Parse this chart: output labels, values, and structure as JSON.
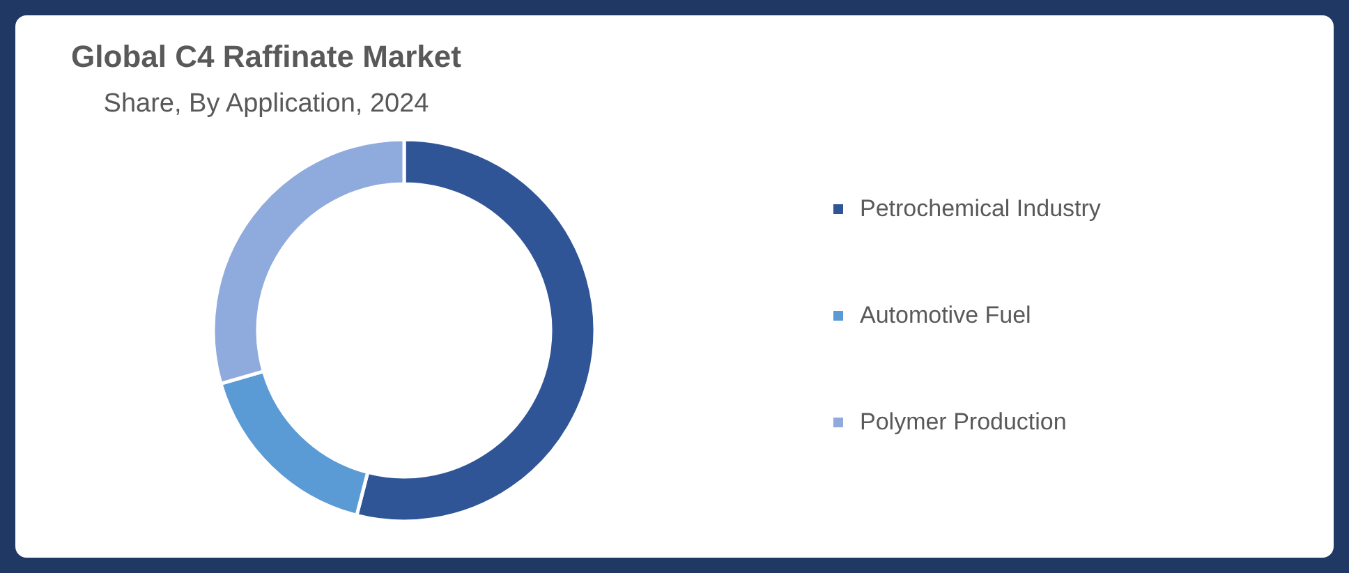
{
  "chart_data": {
    "type": "donut",
    "title": "Global C4 Raffinate Market",
    "subtitle": "Share, By Application, 2024",
    "categories": [
      "Petrochemical Industry",
      "Automotive Fuel",
      "Polymer Production"
    ],
    "values": [
      54.0,
      16.5,
      29.5
    ],
    "colors": [
      "#2f5597",
      "#5b9bd5",
      "#8faadc"
    ],
    "legend": "right"
  }
}
